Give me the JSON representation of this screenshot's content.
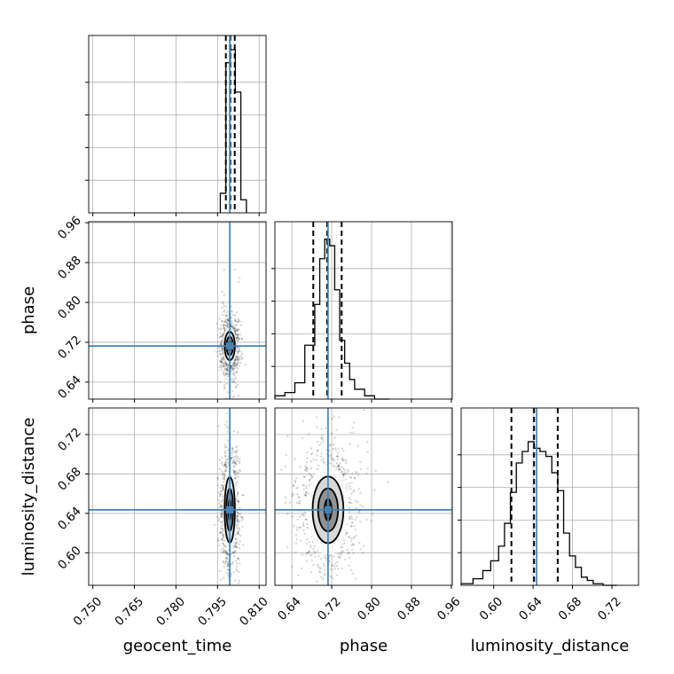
{
  "chart_data": {
    "type": "corner",
    "parameters": [
      "geocent_time",
      "phase",
      "luminosity_distance"
    ],
    "truth": {
      "geocent_time": 0.7994,
      "phase": 0.7126,
      "luminosity_distance": 0.6436
    },
    "truth_color": "#4682b4",
    "ranges": {
      "geocent_time": [
        0.7485,
        0.8125
      ],
      "phase": [
        0.606,
        0.962
      ],
      "luminosity_distance": [
        0.567,
        0.747
      ]
    },
    "ticks": {
      "geocent_time": [
        0.75,
        0.765,
        0.78,
        0.795,
        0.81
      ],
      "phase": [
        0.64,
        0.72,
        0.8,
        0.88,
        0.96
      ],
      "luminosity_distance": [
        0.6,
        0.64,
        0.68,
        0.72
      ]
    },
    "tick_labels": {
      "geocent_time": [
        "0.750",
        "0.765",
        "0.780",
        "0.795",
        "0.810"
      ],
      "phase": [
        "0.64",
        "0.72",
        "0.80",
        "0.88",
        "0.96"
      ],
      "luminosity_distance": [
        "0.60",
        "0.64",
        "0.68",
        "0.72"
      ]
    },
    "axis_labels": {
      "bottom": [
        "geocent_time",
        "phase",
        "luminosity_distance"
      ],
      "left": [
        "phase",
        "luminosity_distance"
      ]
    },
    "quantiles": {
      "geocent_time": [
        0.798,
        0.7996,
        0.8012
      ],
      "phase": [
        0.683,
        0.711,
        0.74
      ],
      "luminosity_distance": [
        0.618,
        0.641,
        0.665
      ]
    },
    "marginals": {
      "geocent_time": {
        "bin_edges": [
          0.796,
          0.798,
          0.7996,
          0.8014,
          0.8034,
          0.8054
        ],
        "counts": [
          0.12,
          0.92,
          1.0,
          0.74,
          0.08
        ]
      },
      "phase": {
        "bin_edges": [
          0.606,
          0.626,
          0.646,
          0.666,
          0.686,
          0.696,
          0.706,
          0.716,
          0.726,
          0.736,
          0.746,
          0.756,
          0.766,
          0.786,
          0.806,
          0.836
        ],
        "counts": [
          0.02,
          0.04,
          0.1,
          0.33,
          0.58,
          0.86,
          0.98,
          0.94,
          0.67,
          0.36,
          0.22,
          0.12,
          0.06,
          0.02,
          0.0
        ]
      },
      "luminosity_distance": {
        "bin_edges": [
          0.567,
          0.579,
          0.589,
          0.597,
          0.605,
          0.611,
          0.617,
          0.623,
          0.629,
          0.635,
          0.641,
          0.647,
          0.653,
          0.659,
          0.665,
          0.671,
          0.677,
          0.683,
          0.689,
          0.695,
          0.701,
          0.711,
          0.725
        ],
        "counts": [
          0.01,
          0.04,
          0.09,
          0.15,
          0.24,
          0.38,
          0.57,
          0.75,
          0.82,
          0.88,
          0.84,
          0.82,
          0.79,
          0.69,
          0.58,
          0.32,
          0.18,
          0.11,
          0.05,
          0.03,
          0.01,
          0.0
        ]
      }
    },
    "contour_levels": [
      {
        "name": "inner",
        "sigma": [
          0.35,
          0.5
        ]
      },
      {
        "name": "middle",
        "sigma": [
          1.0,
          1.0
        ]
      },
      {
        "name": "outer",
        "sigma": [
          1.55,
          1.55
        ]
      }
    ],
    "joint": {
      "geocent_time|phase": {
        "center": [
          0.7994,
          0.7126
        ],
        "spread": [
          0.0012,
          0.0185
        ],
        "outlier_spread": [
          0.0018,
          0.055
        ]
      },
      "geocent_time|luminosity_distance": {
        "center": [
          0.7994,
          0.6436
        ],
        "spread": [
          0.0012,
          0.0215
        ],
        "outlier_spread": [
          0.002,
          0.04
        ]
      },
      "phase|luminosity_distance": {
        "center": [
          0.7126,
          0.6436
        ],
        "spread": [
          0.02,
          0.0218
        ],
        "outlier_spread": [
          0.045,
          0.042
        ]
      }
    }
  }
}
